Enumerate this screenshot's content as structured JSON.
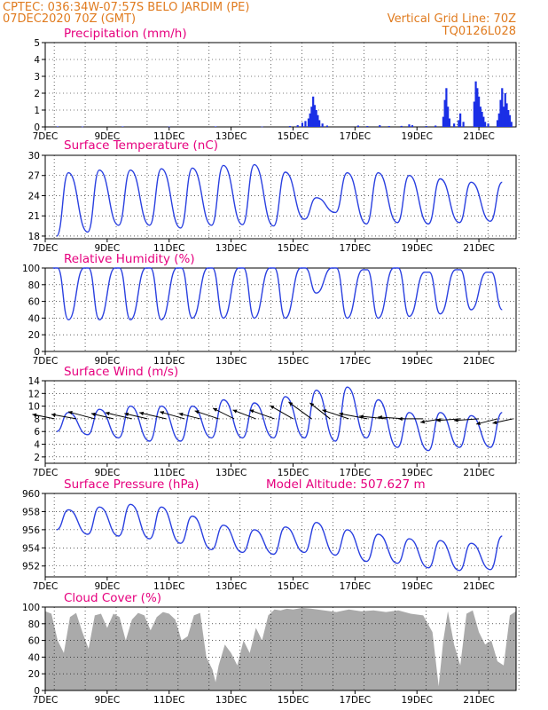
{
  "header": {
    "line1_left": "CPTEC:   036:34W-07:57S  BELO JARDIM (PE)",
    "line2_left": "07DEC2020 70Z (GMT)",
    "line1_right": "Vertical Grid Line: 70Z",
    "line2_right": "TQ0126L028"
  },
  "colors": {
    "header": "#e07b1f",
    "title": "#e6007e",
    "line": "#2a40e0",
    "bar": "#1a2fe6",
    "cloud": "#aaaaaa"
  },
  "x_labels": [
    "7DEC",
    "9DEC",
    "11DEC",
    "13DEC",
    "15DEC",
    "17DEC",
    "19DEC",
    "21DEC"
  ],
  "chart_data": [
    {
      "id": "precip",
      "type": "bar",
      "title": "Precipitation (mm/h)",
      "yticks": [
        0,
        1,
        2,
        3,
        4,
        5
      ],
      "ylim": [
        0,
        5
      ],
      "x_day_range": [
        7,
        22.2
      ],
      "series": [
        {
          "points": [
            [
              7.4,
              0.03
            ],
            [
              8.2,
              0.02
            ],
            [
              9.5,
              0.03
            ],
            [
              11.0,
              0.02
            ],
            [
              12.5,
              0.03
            ],
            [
              14.0,
              0.02
            ],
            [
              14.9,
              0.05
            ],
            [
              15.15,
              0.1
            ],
            [
              15.3,
              0.25
            ],
            [
              15.4,
              0.35
            ],
            [
              15.5,
              0.5
            ],
            [
              15.55,
              0.8
            ],
            [
              15.6,
              1.2
            ],
            [
              15.65,
              1.8
            ],
            [
              15.7,
              1.3
            ],
            [
              15.75,
              1.0
            ],
            [
              15.8,
              0.7
            ],
            [
              15.85,
              0.4
            ],
            [
              15.95,
              0.2
            ],
            [
              16.1,
              0.08
            ],
            [
              17.1,
              0.08
            ],
            [
              17.4,
              0.05
            ],
            [
              17.8,
              0.1
            ],
            [
              18.1,
              0.05
            ],
            [
              18.5,
              0.06
            ],
            [
              18.75,
              0.15
            ],
            [
              18.85,
              0.1
            ],
            [
              19.3,
              0.05
            ],
            [
              19.6,
              0.08
            ],
            [
              19.85,
              0.6
            ],
            [
              19.9,
              1.6
            ],
            [
              19.95,
              2.3
            ],
            [
              20.0,
              1.2
            ],
            [
              20.05,
              0.5
            ],
            [
              20.2,
              0.2
            ],
            [
              20.35,
              0.4
            ],
            [
              20.4,
              0.8
            ],
            [
              20.5,
              0.3
            ],
            [
              20.85,
              1.5
            ],
            [
              20.9,
              2.7
            ],
            [
              20.95,
              2.3
            ],
            [
              21.0,
              1.8
            ],
            [
              21.05,
              1.2
            ],
            [
              21.1,
              0.9
            ],
            [
              21.15,
              0.6
            ],
            [
              21.2,
              0.3
            ],
            [
              21.3,
              0.2
            ],
            [
              21.6,
              0.4
            ],
            [
              21.65,
              0.8
            ],
            [
              21.7,
              1.6
            ],
            [
              21.75,
              2.3
            ],
            [
              21.8,
              1.2
            ],
            [
              21.85,
              2.0
            ],
            [
              21.9,
              1.4
            ],
            [
              21.95,
              1.0
            ],
            [
              22.0,
              0.7
            ],
            [
              22.05,
              0.3
            ]
          ]
        }
      ]
    },
    {
      "id": "temp",
      "type": "line",
      "title": "Surface Temperature (nC)",
      "yticks": [
        18,
        21,
        24,
        27,
        30
      ],
      "ylim": [
        17.6,
        30
      ],
      "x_day_range": [
        7,
        22.2
      ],
      "daily_max": [
        27.4,
        27.8,
        27.8,
        28.0,
        28.1,
        28.5,
        28.6,
        27.5,
        23.7,
        27.4,
        27.4,
        27.0,
        26.5,
        26.0,
        26.0,
        26.3
      ],
      "daily_min": [
        18.0,
        18.6,
        19.6,
        19.6,
        19.2,
        19.6,
        19.7,
        19.5,
        20.5,
        21.5,
        19.8,
        20.0,
        19.8,
        20.0,
        20.2,
        21.8
      ]
    },
    {
      "id": "rh",
      "type": "line",
      "title": "Relative Humidity (%)",
      "yticks": [
        0,
        20,
        40,
        60,
        80,
        100
      ],
      "ylim": [
        0,
        100
      ],
      "x_day_range": [
        7,
        22.2
      ],
      "daily_min": [
        38,
        38,
        38,
        38,
        40,
        40,
        40,
        40,
        70,
        40,
        40,
        42,
        45,
        50,
        50,
        55
      ],
      "daily_max": [
        100,
        100,
        100,
        100,
        100,
        100,
        100,
        100,
        100,
        100,
        98,
        100,
        95,
        98,
        95,
        90
      ]
    },
    {
      "id": "wind",
      "type": "line",
      "title": "Surface Wind (m/s)",
      "yticks": [
        2,
        4,
        6,
        8,
        10,
        12,
        14
      ],
      "ylim": [
        1,
        14
      ],
      "x_day_range": [
        7,
        22.2
      ],
      "daily_min": [
        6.0,
        5.5,
        5.0,
        4.5,
        4.5,
        5.0,
        5.0,
        5.0,
        5.0,
        4.5,
        5.0,
        3.5,
        3.0,
        3.5,
        3.5,
        3.0
      ],
      "daily_max": [
        9.0,
        9.5,
        10.0,
        10.0,
        10.0,
        11.0,
        10.5,
        11.5,
        12.5,
        13.0,
        11.0,
        9.0,
        9.0,
        8.5,
        9.0,
        9.0
      ],
      "arrows": [
        {
          "day": 7.3,
          "u": -2.5,
          "v": 0.5
        },
        {
          "day": 8.0,
          "u": -2.8,
          "v": 0.5
        },
        {
          "day": 8.6,
          "u": -3.0,
          "v": 0.8
        },
        {
          "day": 9.2,
          "u": -2.5,
          "v": 0.6
        },
        {
          "day": 9.8,
          "u": -3.0,
          "v": 0.7
        },
        {
          "day": 10.3,
          "u": -2.6,
          "v": 0.6
        },
        {
          "day": 10.9,
          "u": -3.0,
          "v": 0.7
        },
        {
          "day": 11.5,
          "u": -2.8,
          "v": 0.8
        },
        {
          "day": 12.0,
          "u": -2.4,
          "v": 0.6
        },
        {
          "day": 12.6,
          "u": -2.7,
          "v": 0.9
        },
        {
          "day": 13.1,
          "u": -2.4,
          "v": 1.2
        },
        {
          "day": 13.8,
          "u": -2.6,
          "v": 1.0
        },
        {
          "day": 14.4,
          "u": -2.8,
          "v": 1.0
        },
        {
          "day": 15.0,
          "u": -2.6,
          "v": 1.5
        },
        {
          "day": 15.6,
          "u": -2.6,
          "v": 1.9
        },
        {
          "day": 16.2,
          "u": -2.3,
          "v": 1.8
        },
        {
          "day": 16.8,
          "u": -3.0,
          "v": 1.0
        },
        {
          "day": 17.4,
          "u": -3.2,
          "v": 0.6
        },
        {
          "day": 18.0,
          "u": -3.0,
          "v": 0.3
        },
        {
          "day": 18.6,
          "u": -3.0,
          "v": 0.2
        },
        {
          "day": 19.2,
          "u": -2.8,
          "v": 0.0
        },
        {
          "day": 19.8,
          "u": -2.4,
          "v": -0.4
        },
        {
          "day": 20.4,
          "u": -2.7,
          "v": -0.2
        },
        {
          "day": 21.0,
          "u": -2.8,
          "v": -0.2
        },
        {
          "day": 21.6,
          "u": -2.4,
          "v": -0.6
        },
        {
          "day": 22.1,
          "u": -2.3,
          "v": -0.5
        }
      ]
    },
    {
      "id": "pressure",
      "type": "line",
      "title": "Surface Pressure (hPa)",
      "extra_title": "Model Altitude: 507.627 m",
      "yticks": [
        952,
        954,
        956,
        958,
        960
      ],
      "ylim": [
        950.8,
        960
      ],
      "x_day_range": [
        7,
        22.2
      ],
      "daily_max": [
        958.2,
        958.5,
        958.8,
        958.5,
        957.5,
        956.5,
        956.0,
        956.3,
        956.8,
        956.0,
        955.5,
        955.0,
        954.8,
        954.5,
        955.3,
        954.8
      ],
      "daily_min": [
        956.0,
        955.5,
        955.3,
        955.0,
        954.5,
        953.8,
        953.5,
        953.3,
        953.5,
        953.2,
        952.5,
        952.3,
        951.8,
        951.5,
        951.6,
        952.0
      ]
    },
    {
      "id": "cloud",
      "type": "area",
      "title": "Cloud Cover (%)",
      "yticks": [
        0,
        20,
        40,
        60,
        80,
        100
      ],
      "ylim": [
        0,
        100
      ],
      "x_day_range": [
        7,
        22.2
      ],
      "points": [
        [
          7.0,
          95
        ],
        [
          7.2,
          92
        ],
        [
          7.4,
          60
        ],
        [
          7.6,
          45
        ],
        [
          7.8,
          88
        ],
        [
          8.0,
          93
        ],
        [
          8.2,
          70
        ],
        [
          8.4,
          50
        ],
        [
          8.6,
          90
        ],
        [
          8.8,
          92
        ],
        [
          9.0,
          75
        ],
        [
          9.2,
          92
        ],
        [
          9.4,
          88
        ],
        [
          9.6,
          60
        ],
        [
          9.8,
          85
        ],
        [
          10.0,
          93
        ],
        [
          10.2,
          90
        ],
        [
          10.4,
          72
        ],
        [
          10.6,
          88
        ],
        [
          10.8,
          94
        ],
        [
          11.0,
          92
        ],
        [
          11.2,
          85
        ],
        [
          11.4,
          60
        ],
        [
          11.6,
          65
        ],
        [
          11.8,
          90
        ],
        [
          12.0,
          93
        ],
        [
          12.2,
          40
        ],
        [
          12.4,
          25
        ],
        [
          12.5,
          10
        ],
        [
          12.6,
          30
        ],
        [
          12.8,
          55
        ],
        [
          13.0,
          45
        ],
        [
          13.2,
          30
        ],
        [
          13.4,
          60
        ],
        [
          13.6,
          45
        ],
        [
          13.8,
          75
        ],
        [
          14.0,
          60
        ],
        [
          14.2,
          90
        ],
        [
          14.4,
          97
        ],
        [
          14.6,
          96
        ],
        [
          14.8,
          98
        ],
        [
          15.0,
          97
        ],
        [
          15.3,
          99
        ],
        [
          15.6,
          98
        ],
        [
          16.0,
          96
        ],
        [
          16.4,
          94
        ],
        [
          16.8,
          97
        ],
        [
          17.2,
          95
        ],
        [
          17.6,
          96
        ],
        [
          18.0,
          94
        ],
        [
          18.4,
          96
        ],
        [
          18.8,
          92
        ],
        [
          19.2,
          90
        ],
        [
          19.5,
          70
        ],
        [
          19.7,
          5
        ],
        [
          19.85,
          60
        ],
        [
          20.0,
          95
        ],
        [
          20.2,
          55
        ],
        [
          20.4,
          30
        ],
        [
          20.6,
          92
        ],
        [
          20.8,
          96
        ],
        [
          21.0,
          70
        ],
        [
          21.2,
          55
        ],
        [
          21.4,
          60
        ],
        [
          21.6,
          35
        ],
        [
          21.8,
          30
        ],
        [
          22.0,
          90
        ],
        [
          22.2,
          95
        ]
      ]
    }
  ]
}
